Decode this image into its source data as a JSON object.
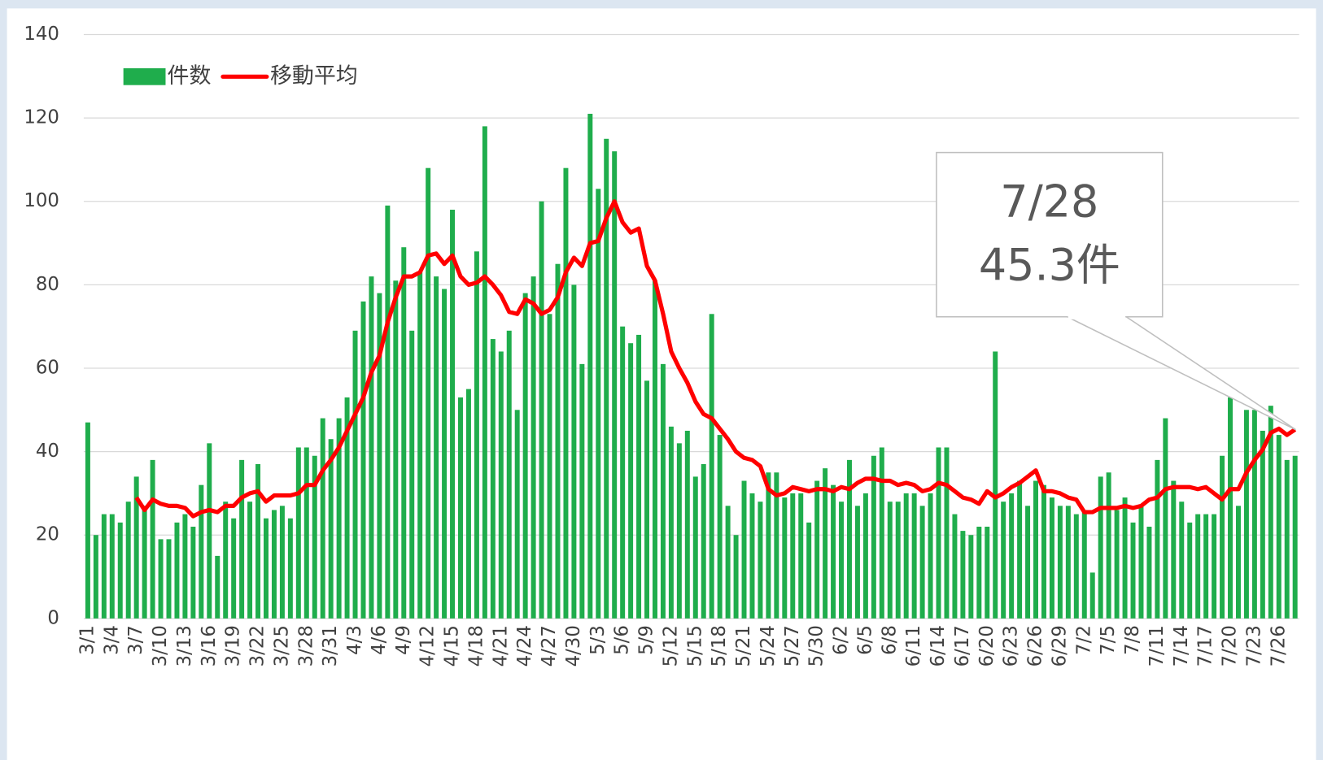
{
  "chart_data": {
    "type": "bar",
    "categories": [
      "3/1",
      null,
      null,
      "3/4",
      null,
      null,
      "3/7",
      null,
      null,
      "3/10",
      null,
      null,
      "3/13",
      null,
      null,
      "3/16",
      null,
      null,
      "3/19",
      null,
      null,
      "3/22",
      null,
      null,
      "3/25",
      null,
      null,
      "3/28",
      null,
      null,
      "3/31",
      null,
      null,
      "4/3",
      null,
      null,
      "4/6",
      null,
      null,
      "4/9",
      null,
      null,
      "4/12",
      null,
      null,
      "4/15",
      null,
      null,
      "4/18",
      null,
      null,
      "4/21",
      null,
      null,
      "4/24",
      null,
      null,
      "4/27",
      null,
      null,
      "4/30",
      null,
      null,
      "5/3",
      null,
      null,
      "5/6",
      null,
      null,
      "5/9",
      null,
      null,
      "5/12",
      null,
      null,
      "5/15",
      null,
      null,
      "5/18",
      null,
      null,
      "5/21",
      null,
      null,
      "5/24",
      null,
      null,
      "5/27",
      null,
      null,
      "5/30",
      null,
      null,
      "6/2",
      null,
      null,
      "6/5",
      null,
      null,
      "6/8",
      null,
      null,
      "6/11",
      null,
      null,
      "6/14",
      null,
      null,
      "6/17",
      null,
      null,
      "6/20",
      null,
      null,
      "6/23",
      null,
      null,
      "6/26",
      null,
      null,
      "6/29",
      null,
      null,
      "7/2",
      null,
      null,
      "7/5",
      null,
      null,
      "7/8",
      null,
      null,
      "7/11",
      null,
      null,
      "7/14",
      null,
      null,
      "7/17",
      null,
      null,
      "7/20",
      null,
      null,
      "7/23",
      null,
      null,
      "7/26",
      null,
      null
    ],
    "series": [
      {
        "name": "件数",
        "type": "bar",
        "color": "#1fad4c",
        "values": [
          47,
          20,
          25,
          25,
          23,
          28,
          34,
          27,
          38,
          19,
          19,
          23,
          25,
          22,
          32,
          42,
          15,
          28,
          24,
          38,
          28,
          37,
          24,
          26,
          27,
          24,
          41,
          41,
          39,
          48,
          43,
          48,
          53,
          69,
          76,
          82,
          78,
          99,
          81,
          89,
          69,
          83,
          108,
          82,
          79,
          98,
          53,
          55,
          88,
          118,
          67,
          64,
          69,
          50,
          78,
          82,
          100,
          73,
          85,
          108,
          80,
          61,
          121,
          103,
          115,
          112,
          70,
          66,
          68,
          57,
          81,
          61,
          46,
          42,
          45,
          34,
          37,
          73,
          44,
          27,
          20,
          33,
          30,
          28,
          35,
          35,
          29,
          30,
          30,
          23,
          33,
          36,
          32,
          28,
          38,
          27,
          30,
          39,
          41,
          28,
          28,
          30,
          30,
          27,
          30,
          41,
          41,
          25,
          21,
          20,
          22,
          22,
          64,
          28,
          30,
          33,
          27,
          33,
          32,
          29,
          27,
          27,
          25,
          26,
          11,
          34,
          35,
          26,
          29,
          23,
          27,
          22,
          38,
          48,
          33,
          28,
          23,
          25,
          25,
          25,
          39,
          53,
          27,
          50,
          50,
          45,
          51,
          44,
          38,
          39
        ]
      },
      {
        "name": "移動平均",
        "type": "line",
        "color": "#ff0000",
        "values": [
          null,
          null,
          null,
          null,
          null,
          null,
          29,
          26,
          28.5,
          27.5,
          27,
          27,
          26.5,
          24.5,
          25.5,
          26,
          25.5,
          27,
          27,
          29,
          30,
          30.5,
          28,
          29.5,
          29.5,
          29.5,
          30,
          32,
          32,
          35.5,
          38,
          41,
          45,
          49,
          53,
          59,
          63,
          71,
          77,
          82,
          82,
          83,
          87,
          87.5,
          85,
          87,
          82,
          80,
          80.5,
          82,
          80,
          77.5,
          73.5,
          73,
          76.5,
          75.5,
          73,
          74,
          77,
          83,
          86.5,
          84.5,
          90,
          90.5,
          96,
          100,
          95,
          92.5,
          93.5,
          84.5,
          81,
          73,
          64,
          60,
          56.5,
          52,
          49,
          48,
          45.5,
          43,
          40,
          38.5,
          38,
          36.5,
          31,
          29.5,
          30,
          31.5,
          31,
          30.5,
          31,
          31,
          30.5,
          31.5,
          31,
          32.5,
          33.5,
          33.5,
          33,
          33,
          32,
          32.5,
          32,
          30.5,
          31,
          32.5,
          32,
          30.5,
          29,
          28.5,
          27.5,
          30.5,
          29,
          30,
          31.5,
          32.5,
          34,
          35.5,
          30.5,
          30.5,
          30,
          29,
          28.5,
          25.5,
          25.5,
          26.5,
          26.5,
          26.5,
          27,
          26.5,
          27,
          28.5,
          29,
          31,
          31.5,
          31.5,
          31.5,
          31,
          31.5,
          30,
          28.5,
          31,
          31,
          35,
          38,
          40.5,
          44.5,
          45.5,
          44,
          45.3
        ]
      }
    ],
    "ylim": [
      0,
      140
    ],
    "yticks": [
      0,
      20,
      40,
      60,
      80,
      100,
      120,
      140
    ],
    "grid": true,
    "legend": "upper left",
    "callout": [
      "7/28",
      "45.3件"
    ]
  }
}
